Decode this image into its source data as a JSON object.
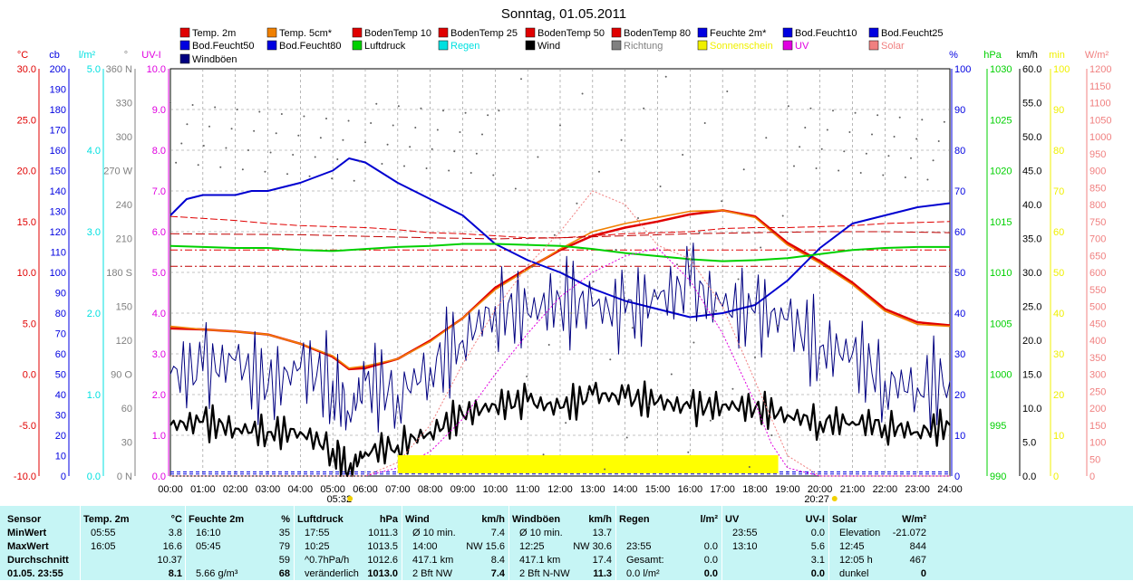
{
  "chart_data": {
    "type": "line",
    "title": "Sonntag, 01.05.2011",
    "legend": [
      {
        "label": "Temp. 2m",
        "color": "#e00000"
      },
      {
        "label": "Temp. 5cm*",
        "color": "#f08000"
      },
      {
        "label": "BodenTemp 10",
        "color": "#e00000"
      },
      {
        "label": "BodenTemp 25",
        "color": "#e00000"
      },
      {
        "label": "BodenTemp 50",
        "color": "#e00000"
      },
      {
        "label": "BodenTemp 80",
        "color": "#e00000"
      },
      {
        "label": "Feuchte 2m*",
        "color": "#0000e0"
      },
      {
        "label": "Bod.Feucht10",
        "color": "#0000e0"
      },
      {
        "label": "Bod.Feucht25",
        "color": "#0000e0"
      },
      {
        "label": "Bod.Feucht50",
        "color": "#0000e0"
      },
      {
        "label": "Bod.Feucht80",
        "color": "#0000e0"
      },
      {
        "label": "Luftdruck",
        "color": "#00d000"
      },
      {
        "label": "Regen",
        "color": "#00e0e0"
      },
      {
        "label": "Wind",
        "color": "#000000"
      },
      {
        "label": "Richtung",
        "color": "#808080"
      },
      {
        "label": "Sonnenschein",
        "color": "#f0f000"
      },
      {
        "label": "UV",
        "color": "#e000e0"
      },
      {
        "label": "Solar",
        "color": "#f08080"
      },
      {
        "label": "Windböen",
        "color": "#000080"
      }
    ],
    "x_ticks": [
      "00:00",
      "01:00",
      "02:00",
      "03:00",
      "04:00",
      "05:00",
      "06:00",
      "07:00",
      "08:00",
      "09:00",
      "10:00",
      "11:00",
      "12:00",
      "13:00",
      "14:00",
      "15:00",
      "16:00",
      "17:00",
      "18:00",
      "19:00",
      "20:00",
      "21:00",
      "22:00",
      "23:00",
      "24:00"
    ],
    "sunrise": "05:32",
    "sunset": "20:27",
    "axes": [
      {
        "unit": "°C",
        "color": "#e00000",
        "ticks": [
          "30.0",
          "25.0",
          "20.0",
          "15.0",
          "10.0",
          "5.0",
          "0.0",
          "-5.0",
          "-10.0"
        ]
      },
      {
        "unit": "cb",
        "color": "#0000e0",
        "ticks": [
          "200",
          "190",
          "180",
          "170",
          "160",
          "150",
          "140",
          "130",
          "120",
          "110",
          "100",
          "90",
          "80",
          "70",
          "60",
          "50",
          "40",
          "30",
          "20",
          "10",
          "0"
        ]
      },
      {
        "unit": "l/m²",
        "color": "#00e0e0",
        "ticks": [
          "5.0",
          "4.0",
          "3.0",
          "2.0",
          "1.0",
          "0.0"
        ]
      },
      {
        "unit": "°",
        "color": "#808080",
        "ticks": [
          "360 N",
          "330",
          "300",
          "270 W",
          "240",
          "210",
          "180 S",
          "150",
          "120",
          "90 O",
          "60",
          "30",
          "0 N"
        ]
      },
      {
        "unit": "UV-I",
        "color": "#e000e0",
        "ticks": [
          "10.0",
          "9.0",
          "8.0",
          "7.0",
          "6.0",
          "5.0",
          "4.0",
          "3.0",
          "2.0",
          "1.0",
          "0.0"
        ]
      },
      {
        "unit": "%",
        "color": "#0000e0",
        "ticks": [
          "100",
          "90",
          "80",
          "70",
          "60",
          "50",
          "40",
          "30",
          "20",
          "10",
          "0"
        ]
      },
      {
        "unit": "hPa",
        "color": "#00d000",
        "ticks": [
          "1030",
          "1025",
          "1020",
          "1015",
          "1010",
          "1005",
          "1000",
          "995",
          "990"
        ]
      },
      {
        "unit": "km/h",
        "color": "#000000",
        "ticks": [
          "60.0",
          "55.0",
          "50.0",
          "45.0",
          "40.0",
          "35.0",
          "30.0",
          "25.0",
          "20.0",
          "15.0",
          "10.0",
          "5.0",
          "0.0"
        ]
      },
      {
        "unit": "min",
        "color": "#f0f000",
        "ticks": [
          "100",
          "90",
          "80",
          "70",
          "60",
          "50",
          "40",
          "30",
          "20",
          "10",
          "0"
        ]
      },
      {
        "unit": "W/m²",
        "color": "#f08080",
        "ticks": [
          "1200",
          "1150",
          "1100",
          "1050",
          "1000",
          "950",
          "900",
          "850",
          "800",
          "750",
          "700",
          "650",
          "600",
          "550",
          "500",
          "450",
          "400",
          "350",
          "300",
          "250",
          "200",
          "150",
          "100",
          "50",
          "0"
        ]
      }
    ],
    "series": [
      {
        "name": "Temp. 2m",
        "unit": "°C",
        "x": [
          0,
          1,
          2,
          3,
          4,
          5,
          5.5,
          6,
          7,
          8,
          9,
          10,
          11,
          12,
          13,
          14,
          15,
          16,
          17,
          18,
          19,
          20,
          21,
          22,
          23,
          24
        ],
        "values": [
          4.5,
          4.4,
          4.2,
          3.9,
          3.0,
          1.7,
          0.5,
          0.6,
          1.5,
          3.3,
          5.5,
          8.5,
          10.4,
          12.2,
          13.6,
          14.4,
          15.0,
          15.7,
          16.1,
          15.5,
          12.9,
          11.1,
          9.0,
          6.4,
          5.1,
          4.8
        ]
      },
      {
        "name": "Temp. 5cm*",
        "unit": "°C",
        "x": [
          0,
          1,
          2,
          3,
          4,
          5,
          5.5,
          6,
          7,
          8,
          9,
          10,
          11,
          12,
          13,
          14,
          15,
          16,
          17,
          18,
          19,
          20,
          21,
          22,
          23,
          24
        ],
        "values": [
          4.7,
          4.4,
          4.2,
          3.9,
          3.0,
          1.8,
          0.6,
          0.8,
          1.5,
          3.2,
          5.5,
          8.3,
          10.3,
          12.3,
          14.0,
          14.8,
          15.4,
          16.0,
          16.1,
          15.4,
          12.7,
          10.9,
          8.8,
          6.2,
          4.9,
          4.7
        ]
      },
      {
        "name": "BodenTemp 10",
        "unit": "°C",
        "x": [
          0,
          2,
          3,
          4,
          5,
          6,
          7,
          8,
          9,
          10,
          11,
          12,
          13,
          14,
          15,
          16,
          17,
          18,
          19,
          20,
          21,
          22,
          23,
          24
        ],
        "values": [
          15.5,
          15.1,
          14.8,
          14.6,
          14.5,
          14.4,
          14.2,
          13.9,
          13.8,
          13.6,
          13.4,
          13.4,
          13.6,
          13.8,
          13.9,
          14.0,
          14.3,
          14.4,
          14.4,
          14.5,
          14.6,
          14.8,
          14.9,
          15.0
        ]
      },
      {
        "name": "BodenTemp 25",
        "unit": "°C",
        "x": [
          0,
          4,
          8,
          10,
          12,
          16,
          18,
          20,
          22,
          24
        ],
        "values": [
          13.8,
          13.7,
          13.4,
          13.3,
          13.4,
          13.8,
          13.9,
          14.0,
          14.0,
          13.9
        ]
      },
      {
        "name": "BodenTemp 50",
        "unit": "°C",
        "x": [
          0,
          6,
          12,
          18,
          24
        ],
        "values": [
          12.2,
          12.2,
          12.2,
          12.2,
          12.2
        ]
      },
      {
        "name": "BodenTemp 80",
        "unit": "°C",
        "x": [
          0,
          6,
          12,
          18,
          24
        ],
        "values": [
          10.6,
          10.6,
          10.6,
          10.6,
          10.6
        ]
      },
      {
        "name": "Feuchte 2m*",
        "unit": "%",
        "x": [
          0,
          0.5,
          1,
          2,
          2.5,
          3,
          4,
          5,
          5.5,
          6,
          7,
          8,
          9,
          10,
          11,
          12,
          13,
          14,
          15,
          16,
          17,
          18,
          19,
          20,
          21,
          22,
          23,
          24
        ],
        "values": [
          64,
          68,
          69,
          69,
          70,
          70,
          72,
          75,
          78,
          77,
          72,
          68,
          64,
          57,
          53,
          50,
          46,
          43,
          41,
          39,
          40,
          42,
          48,
          56,
          62,
          64,
          66,
          67
        ]
      },
      {
        "name": "Bod.Feucht50",
        "unit": "cb",
        "x": [
          0,
          24
        ],
        "values": [
          2,
          2
        ]
      },
      {
        "name": "Bod.Feucht80",
        "unit": "cb",
        "x": [
          0,
          24
        ],
        "values": [
          1,
          1
        ]
      },
      {
        "name": "Luftdruck",
        "unit": "hPa",
        "x": [
          0,
          1,
          2,
          3,
          4,
          5,
          6,
          7,
          8,
          9,
          10,
          11,
          12,
          13,
          14,
          15,
          16,
          17,
          18,
          19,
          20,
          21,
          22,
          23,
          24
        ],
        "values": [
          1012.6,
          1012.5,
          1012.4,
          1012.4,
          1012.2,
          1012.1,
          1012.3,
          1012.5,
          1012.6,
          1012.8,
          1012.8,
          1012.7,
          1012.6,
          1012.3,
          1011.9,
          1011.6,
          1011.3,
          1011.1,
          1011.2,
          1011.4,
          1011.8,
          1012.2,
          1012.4,
          1012.5,
          1012.5
        ]
      },
      {
        "name": "Wind",
        "unit": "km/h",
        "x": [
          0,
          1,
          2,
          3,
          4,
          5,
          5.5,
          6,
          7,
          8,
          9,
          10,
          11,
          12,
          13,
          14,
          15,
          16,
          17,
          18,
          19,
          20,
          21,
          22,
          23,
          24
        ],
        "values": [
          7.5,
          8.0,
          7.0,
          6.5,
          6.5,
          4.0,
          1.0,
          3.5,
          4.5,
          6.5,
          9.0,
          10.5,
          11.0,
          10.0,
          12.0,
          11.5,
          11.0,
          10.0,
          10.5,
          10.0,
          9.0,
          8.0,
          8.0,
          7.5,
          6.5,
          7.5
        ]
      },
      {
        "name": "Windböen",
        "unit": "km/h",
        "x": [
          0,
          1,
          2,
          3,
          4,
          5,
          5.5,
          6,
          7,
          8,
          9,
          10,
          11,
          12,
          13,
          14,
          15,
          16,
          17,
          18,
          19,
          20,
          21,
          22,
          23,
          24
        ],
        "values": [
          15.0,
          15.5,
          17.0,
          13.0,
          16.0,
          14.0,
          9.0,
          14.0,
          12.0,
          16.0,
          20.0,
          25.0,
          24.0,
          26.0,
          25.0,
          24.0,
          26.0,
          28.0,
          25.0,
          24.0,
          23.0,
          19.0,
          18.0,
          14.0,
          13.0,
          14.0
        ]
      },
      {
        "name": "UV",
        "unit": "UV-I",
        "x": [
          0,
          6,
          7,
          8,
          9,
          10,
          11,
          12,
          13,
          14,
          15,
          16,
          17,
          18,
          18.5,
          19,
          20,
          24
        ],
        "values": [
          0,
          0,
          0.2,
          0.6,
          1.4,
          2.5,
          3.5,
          4.4,
          5.0,
          5.4,
          5.6,
          4.8,
          3.5,
          1.8,
          0.8,
          0.2,
          0,
          0
        ]
      },
      {
        "name": "Solar",
        "unit": "W/m²",
        "x": [
          0,
          6,
          7,
          8,
          9,
          10,
          11,
          12,
          13,
          14,
          15,
          16,
          17,
          18,
          19,
          20,
          24
        ],
        "values": [
          0,
          0,
          40,
          150,
          330,
          490,
          620,
          720,
          840,
          800,
          680,
          640,
          500,
          280,
          60,
          0,
          0
        ]
      },
      {
        "name": "Sonnenschein",
        "unit": "min",
        "x": [
          7,
          8,
          9,
          10,
          11,
          12,
          13,
          14,
          15,
          16,
          17,
          18,
          18.7,
          19.3
        ],
        "values": [
          4,
          4,
          4,
          4,
          4,
          4,
          4,
          4,
          4,
          4,
          4,
          4,
          0,
          4
        ]
      }
    ],
    "xlim": [
      0,
      24
    ]
  },
  "stats": {
    "rows": [
      "Sensor",
      "MinWert",
      "MaxWert",
      "Durchschnitt",
      "01.05. 23:55"
    ],
    "cols": [
      {
        "h1": "Temp. 2m",
        "h2": "°C",
        "c1": [
          "05:55",
          "16:05",
          "",
          ""
        ],
        "c2": [
          "3.8",
          "16.6",
          "10.37",
          "8.1"
        ]
      },
      {
        "h1": "Feuchte 2m",
        "h2": "%",
        "c1": [
          "16:10",
          "05:45",
          "",
          "5.66 g/m³"
        ],
        "c2": [
          "35",
          "79",
          "59",
          "68"
        ]
      },
      {
        "h1": "Luftdruck",
        "h2": "hPa",
        "c1": [
          "17:55",
          "10:25",
          "^0.7hPa/h",
          "veränderlich"
        ],
        "c2": [
          "1011.3",
          "1013.5",
          "1012.6",
          "1013.0"
        ]
      },
      {
        "h1": "Wind",
        "h2": "km/h",
        "c1": [
          "Ø 10 min.",
          "14:00",
          "417.1 km",
          "2 Bft NW"
        ],
        "c2": [
          "7.4",
          "NW 15.6",
          "8.4",
          "7.4"
        ]
      },
      {
        "h1": "Windböen",
        "h2": "km/h",
        "c1": [
          "Ø 10 min.",
          "12:25",
          "417.1 km",
          "2 Bft N-NW"
        ],
        "c2": [
          "13.7",
          "NW 30.6",
          "17.4",
          "11.3"
        ]
      },
      {
        "h1": "Regen",
        "h2": "l/m²",
        "c1": [
          "",
          "23:55",
          "Gesamt:",
          "0.0 l/m²"
        ],
        "c2": [
          "",
          "0.0",
          "0.0",
          "0.0"
        ]
      },
      {
        "h1": "UV",
        "h2": "UV-I",
        "c1": [
          "23:55",
          "13:10",
          "",
          ""
        ],
        "c2": [
          "0.0",
          "5.6",
          "3.1",
          "0.0"
        ]
      },
      {
        "h1": "Solar",
        "h2": "W/m²",
        "c1": [
          "Elevation",
          "12:45",
          "12:05 h",
          "dunkel"
        ],
        "c2": [
          "-21.072",
          "844",
          "467",
          "0"
        ]
      }
    ]
  }
}
